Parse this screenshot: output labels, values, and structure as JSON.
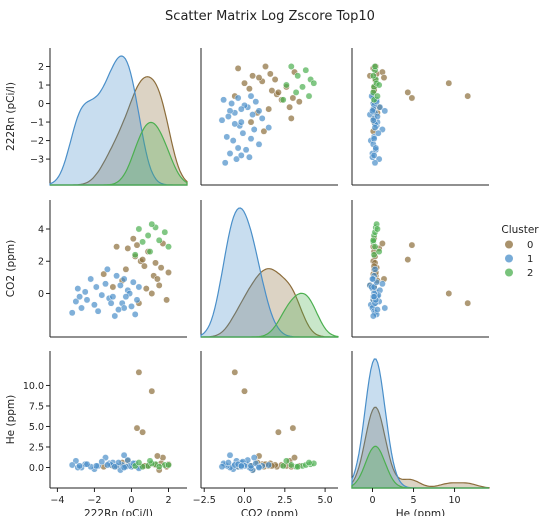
{
  "title": "Scatter Matrix Log Zscore Top10",
  "legend": {
    "title": "Cluster",
    "placement": "right",
    "entries": [
      {
        "label": "0",
        "color": "#8c6d3b"
      },
      {
        "label": "1",
        "color": "#4a8fc9"
      },
      {
        "label": "2",
        "color": "#4caf50"
      }
    ]
  },
  "chart_data": {
    "type": "scatter",
    "variables": [
      "222Rn (pCi/l)",
      "CO2 (ppm)",
      "He (ppm)"
    ],
    "axes": {
      "222Rn (pCi/l)": {
        "range": [
          -4.4,
          3.0
        ],
        "ticks": [
          -4,
          -2,
          0,
          2
        ],
        "tick_labels": [
          "−4",
          "−2",
          "0",
          "2"
        ],
        "y_ticks": [
          -3,
          -2,
          -1,
          0,
          1,
          2
        ],
        "y_tick_labels": [
          "−3",
          "−2",
          "−1",
          "0",
          "1",
          "2"
        ]
      },
      "CO2 (ppm)": {
        "range": [
          -2.7,
          5.8
        ],
        "ticks": [
          -2.5,
          0.0,
          2.5,
          5.0
        ],
        "tick_labels": [
          "−2.5",
          "0.0",
          "2.5",
          "5.0"
        ],
        "y_ticks": [
          0,
          2,
          4
        ],
        "y_tick_labels": [
          "0",
          "2",
          "4"
        ]
      },
      "He (ppm)": {
        "range": [
          -2.5,
          14.2
        ],
        "ticks": [
          0,
          5,
          10
        ],
        "tick_labels": [
          "0",
          "5",
          "10"
        ],
        "y_ticks": [
          0.0,
          2.5,
          5.0,
          7.5,
          10.0
        ],
        "y_tick_labels": [
          "0.0",
          "2.5",
          "5.0",
          "7.5",
          "10.0"
        ]
      }
    },
    "series": [
      {
        "name": "0",
        "color": "#8c6d3b",
        "points": [
          [
            1.2,
            1.1,
            0.4
          ],
          [
            0.5,
            2.0,
            0.1
          ],
          [
            -0.3,
            1.5,
            0.2
          ],
          [
            1.6,
            1.6,
            0.5
          ],
          [
            0.8,
            0.3,
            0.2
          ],
          [
            0.2,
            2.3,
            0.3
          ],
          [
            1.5,
            0.5,
            -0.3
          ],
          [
            -0.5,
            0.8,
            0.6
          ],
          [
            1.9,
            -0.4,
            0.1
          ],
          [
            0.9,
            2.6,
            0.2
          ],
          [
            0.3,
            3.0,
            4.8
          ],
          [
            -0.2,
            2.8,
            0.8
          ],
          [
            1.7,
            3.1,
            1.2
          ],
          [
            1.1,
            0.0,
            9.3
          ],
          [
            0.4,
            -0.6,
            11.6
          ],
          [
            -1.5,
            1.2,
            0.1
          ],
          [
            0.6,
            2.1,
            4.3
          ],
          [
            1.3,
            1.9,
            0.3
          ],
          [
            0.1,
            3.4,
            0.2
          ],
          [
            -0.8,
            2.9,
            0.1
          ],
          [
            1.4,
            0.9,
            1.4
          ],
          [
            -1.0,
            0.4,
            0.2
          ],
          [
            2.0,
            1.3,
            0.4
          ],
          [
            0.7,
            1.7,
            0.2
          ]
        ]
      },
      {
        "name": "1",
        "color": "#4a8fc9",
        "points": [
          [
            -0.5,
            -0.6,
            0.3
          ],
          [
            0.0,
            -0.8,
            0.1
          ],
          [
            -1.2,
            -0.3,
            0.5
          ],
          [
            -2.0,
            -0.7,
            -0.2
          ],
          [
            -2.7,
            -0.9,
            0.0
          ],
          [
            -3.0,
            -0.5,
            0.8
          ],
          [
            -2.5,
            0.1,
            0.4
          ],
          [
            -1.8,
            -1.1,
            0.2
          ],
          [
            -1.0,
            -0.2,
            0.6
          ],
          [
            -0.6,
            0.5,
            -0.3
          ],
          [
            0.3,
            -0.4,
            0.1
          ],
          [
            -0.2,
            0.2,
            0.9
          ],
          [
            -1.4,
            0.6,
            1.2
          ],
          [
            -0.8,
            1.1,
            0.2
          ],
          [
            -3.2,
            -1.2,
            0.3
          ],
          [
            -2.2,
            0.9,
            0.1
          ],
          [
            0.2,
            -1.3,
            0.5
          ],
          [
            -0.4,
            -0.9,
            1.5
          ],
          [
            -1.6,
            -0.1,
            0.7
          ],
          [
            -2.9,
            0.3,
            0.0
          ],
          [
            -0.1,
            0.0,
            0.2
          ],
          [
            0.4,
            0.4,
            -0.1
          ],
          [
            -1.1,
            -0.6,
            0.3
          ],
          [
            -0.7,
            -1.0,
            0.6
          ],
          [
            -2.4,
            -0.4,
            0.4
          ],
          [
            -1.9,
            0.4,
            0.2
          ],
          [
            -0.3,
            -0.2,
            0.1
          ],
          [
            0.1,
            0.7,
            0.5
          ],
          [
            -1.3,
            1.5,
            0.3
          ],
          [
            -0.9,
            -1.4,
            0.1
          ],
          [
            -2.8,
            -0.2,
            0.2
          ],
          [
            -0.4,
            0.9,
            0.0
          ]
        ]
      },
      {
        "name": "2",
        "color": "#4caf50",
        "points": [
          [
            0.9,
            3.6,
            0.2
          ],
          [
            1.3,
            4.1,
            0.4
          ],
          [
            0.6,
            3.2,
            0.1
          ],
          [
            1.8,
            3.8,
            0.3
          ],
          [
            1.1,
            4.3,
            0.5
          ],
          [
            0.2,
            2.4,
            0.2
          ],
          [
            1.5,
            3.3,
            0.1
          ],
          [
            0.4,
            4.0,
            0.6
          ],
          [
            2.0,
            2.9,
            0.3
          ],
          [
            1.0,
            2.6,
            0.8
          ]
        ]
      }
    ],
    "diagonal": "kde"
  }
}
